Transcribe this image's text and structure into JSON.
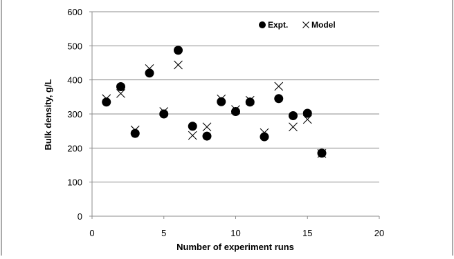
{
  "chart_data": {
    "type": "scatter",
    "title": "",
    "xlabel": "Number of experiment runs",
    "ylabel": "Bulk density, g/L",
    "xlim": [
      0,
      20
    ],
    "ylim": [
      0,
      600
    ],
    "xticks": [
      0,
      5,
      10,
      15,
      20
    ],
    "yticks": [
      0,
      100,
      200,
      300,
      400,
      500,
      600
    ],
    "grid": "horizontal",
    "legend_position": "top-right",
    "series": [
      {
        "name": "Expt.",
        "marker": "filled-circle",
        "color": "#000000",
        "x": [
          1,
          2,
          3,
          4,
          5,
          6,
          7,
          8,
          9,
          10,
          11,
          12,
          13,
          14,
          15,
          16
        ],
        "y": [
          335,
          380,
          243,
          420,
          300,
          487,
          264,
          235,
          336,
          307,
          335,
          233,
          345,
          295,
          302,
          185
        ]
      },
      {
        "name": "Model",
        "marker": "x",
        "color": "#000000",
        "x": [
          1,
          2,
          3,
          4,
          5,
          6,
          7,
          8,
          9,
          10,
          11,
          12,
          13,
          14,
          15,
          16
        ],
        "y": [
          345,
          360,
          253,
          433,
          307,
          444,
          237,
          262,
          344,
          313,
          340,
          245,
          381,
          262,
          284,
          184
        ]
      }
    ]
  }
}
